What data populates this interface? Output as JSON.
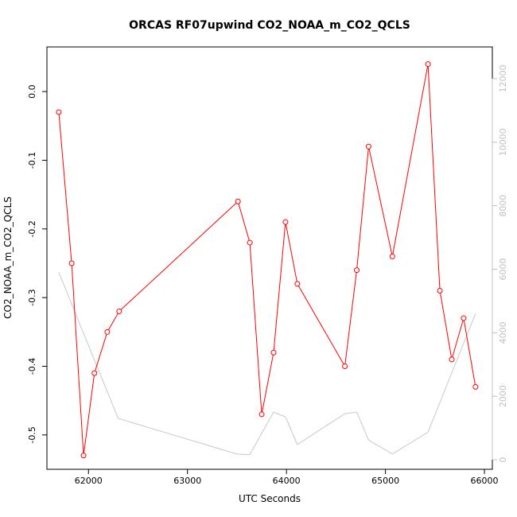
{
  "chart_data": {
    "type": "line",
    "title": "ORCAS RF07upwind CO2_NOAA_m_CO2_QCLS",
    "xlabel": "UTC Seconds",
    "ylabel": "CO2_NOAA_m_CO2_QCLS",
    "xlim": [
      61580,
      66080
    ],
    "ylim": [
      -0.55,
      0.065
    ],
    "y2lim": [
      -300,
      13000
    ],
    "x_ticks": [
      62000,
      63000,
      64000,
      65000,
      66000
    ],
    "y_ticks": [
      0.0,
      -0.1,
      -0.2,
      -0.3,
      -0.4,
      -0.5
    ],
    "y_tick_labels": [
      "0.0",
      "-0.1",
      "-0.2",
      "-0.3",
      "-0.4",
      "-0.5"
    ],
    "y2_ticks": [
      0,
      2000,
      4000,
      6000,
      8000,
      10000,
      12000
    ],
    "grid": false,
    "series": [
      {
        "color": "#ff0000",
        "marker": "open-circle",
        "x": [
          61700,
          61830,
          61950,
          62060,
          62190,
          62310,
          63510,
          63630,
          63750,
          63870,
          63990,
          64110,
          64590,
          64710,
          64830,
          65070,
          65430,
          65550,
          65670,
          65790,
          65910
        ],
        "y": [
          -0.03,
          -0.25,
          -0.53,
          -0.41,
          -0.35,
          -0.32,
          -0.16,
          -0.22,
          -0.47,
          -0.38,
          -0.19,
          -0.28,
          -0.4,
          -0.26,
          -0.08,
          -0.24,
          0.04,
          -0.29,
          -0.39,
          -0.33,
          -0.43
        ]
      },
      {
        "color": "#c8c8c8",
        "axis": "right",
        "x": [
          61700,
          62300,
          63500,
          63630,
          63870,
          63990,
          64110,
          64590,
          64710,
          64830,
          65070,
          65430,
          65910
        ],
        "y": [
          5900,
          1300,
          180,
          160,
          1500,
          1350,
          480,
          1450,
          1500,
          620,
          180,
          870,
          4600
        ]
      }
    ]
  }
}
